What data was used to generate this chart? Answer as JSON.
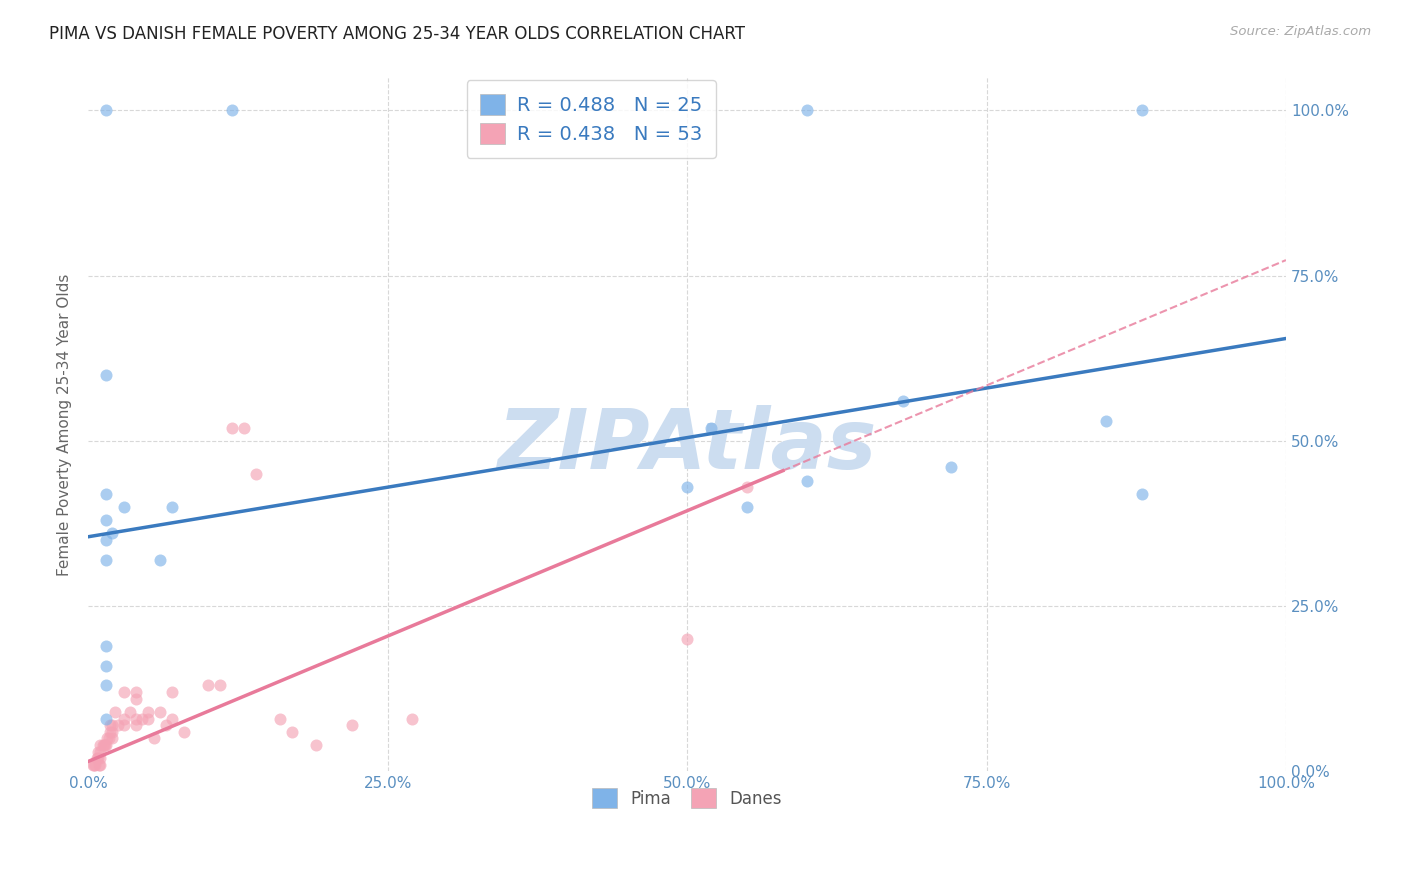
{
  "title": "PIMA VS DANISH FEMALE POVERTY AMONG 25-34 YEAR OLDS CORRELATION CHART",
  "source": "Source: ZipAtlas.com",
  "ylabel": "Female Poverty Among 25-34 Year Olds",
  "pima_R": 0.488,
  "pima_N": 25,
  "danes_R": 0.438,
  "danes_N": 53,
  "pima_color": "#7fb3e8",
  "danes_color": "#f4a3b5",
  "pima_line_color": "#3a7abf",
  "danes_line_color": "#e87a9a",
  "watermark_color": "#c8d8f0",
  "axis_label_color": "#5a8fc0",
  "grid_color": "#d8d8d8",
  "pima_line": {
    "x0": 0.0,
    "y0": 0.355,
    "x1": 1.0,
    "y1": 0.655
  },
  "danes_line_solid": {
    "x0": 0.0,
    "y0": 0.015,
    "x1": 0.58,
    "y1": 0.455
  },
  "danes_line_dashed": {
    "x0": 0.58,
    "y0": 0.455,
    "x1": 1.0,
    "y2": 0.67
  },
  "pima_points": [
    [
      0.015,
      1.0
    ],
    [
      0.12,
      1.0
    ],
    [
      0.6,
      1.0
    ],
    [
      0.88,
      1.0
    ],
    [
      0.015,
      0.6
    ],
    [
      0.015,
      0.42
    ],
    [
      0.015,
      0.38
    ],
    [
      0.015,
      0.35
    ],
    [
      0.015,
      0.32
    ],
    [
      0.015,
      0.19
    ],
    [
      0.02,
      0.36
    ],
    [
      0.03,
      0.4
    ],
    [
      0.06,
      0.32
    ],
    [
      0.07,
      0.4
    ],
    [
      0.015,
      0.16
    ],
    [
      0.015,
      0.13
    ],
    [
      0.015,
      0.08
    ],
    [
      0.5,
      0.43
    ],
    [
      0.52,
      0.52
    ],
    [
      0.55,
      0.4
    ],
    [
      0.6,
      0.44
    ],
    [
      0.68,
      0.56
    ],
    [
      0.72,
      0.46
    ],
    [
      0.85,
      0.53
    ],
    [
      0.88,
      0.42
    ]
  ],
  "danes_points": [
    [
      0.004,
      0.01
    ],
    [
      0.005,
      0.01
    ],
    [
      0.006,
      0.01
    ],
    [
      0.007,
      0.02
    ],
    [
      0.008,
      0.02
    ],
    [
      0.008,
      0.03
    ],
    [
      0.009,
      0.01
    ],
    [
      0.01,
      0.01
    ],
    [
      0.01,
      0.02
    ],
    [
      0.01,
      0.03
    ],
    [
      0.01,
      0.04
    ],
    [
      0.012,
      0.04
    ],
    [
      0.013,
      0.04
    ],
    [
      0.014,
      0.04
    ],
    [
      0.015,
      0.04
    ],
    [
      0.016,
      0.05
    ],
    [
      0.017,
      0.05
    ],
    [
      0.018,
      0.06
    ],
    [
      0.018,
      0.07
    ],
    [
      0.02,
      0.05
    ],
    [
      0.02,
      0.06
    ],
    [
      0.02,
      0.07
    ],
    [
      0.022,
      0.09
    ],
    [
      0.025,
      0.07
    ],
    [
      0.03,
      0.07
    ],
    [
      0.03,
      0.08
    ],
    [
      0.03,
      0.12
    ],
    [
      0.035,
      0.09
    ],
    [
      0.04,
      0.07
    ],
    [
      0.04,
      0.08
    ],
    [
      0.04,
      0.11
    ],
    [
      0.04,
      0.12
    ],
    [
      0.045,
      0.08
    ],
    [
      0.05,
      0.08
    ],
    [
      0.05,
      0.09
    ],
    [
      0.055,
      0.05
    ],
    [
      0.06,
      0.09
    ],
    [
      0.065,
      0.07
    ],
    [
      0.07,
      0.08
    ],
    [
      0.07,
      0.12
    ],
    [
      0.08,
      0.06
    ],
    [
      0.1,
      0.13
    ],
    [
      0.11,
      0.13
    ],
    [
      0.12,
      0.52
    ],
    [
      0.13,
      0.52
    ],
    [
      0.14,
      0.45
    ],
    [
      0.16,
      0.08
    ],
    [
      0.17,
      0.06
    ],
    [
      0.19,
      0.04
    ],
    [
      0.22,
      0.07
    ],
    [
      0.27,
      0.08
    ],
    [
      0.5,
      0.2
    ],
    [
      0.55,
      0.43
    ]
  ],
  "xlim": [
    0.0,
    1.0
  ],
  "ylim": [
    0.0,
    1.05
  ],
  "xticks": [
    0.0,
    0.25,
    0.5,
    0.75,
    1.0
  ],
  "yticks": [
    0.0,
    0.25,
    0.5,
    0.75,
    1.0
  ],
  "xticklabels": [
    "0.0%",
    "25.0%",
    "50.0%",
    "75.0%",
    "100.0%"
  ],
  "right_yticklabels": [
    "0.0%",
    "25.0%",
    "50.0%",
    "75.0%",
    "100.0%"
  ],
  "marker_size": 75,
  "marker_alpha": 0.65,
  "line_width": 2.5
}
